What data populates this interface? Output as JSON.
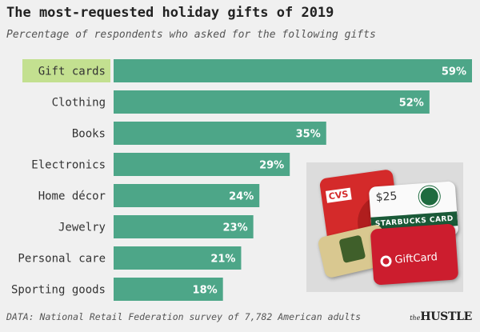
{
  "chart_data": {
    "type": "bar",
    "orientation": "horizontal",
    "title": "The most-requested holiday gifts of 2019",
    "subtitle": "Percentage of respondents who asked for the following gifts",
    "categories": [
      "Gift cards",
      "Clothing",
      "Books",
      "Electronics",
      "Home décor",
      "Jewelry",
      "Personal care",
      "Sporting goods"
    ],
    "values": [
      59,
      52,
      35,
      29,
      24,
      23,
      21,
      18
    ],
    "value_labels": [
      "59%",
      "52%",
      "35%",
      "29%",
      "24%",
      "23%",
      "21%",
      "18%"
    ],
    "highlighted_category": "Gift cards",
    "xlim": [
      0,
      59
    ],
    "grid": false,
    "legend": "none",
    "colors": {
      "bar": "#4da688",
      "highlight_label_bg": "#c3e090",
      "value_text": "#ffffff",
      "background": "#f0f0f0"
    }
  },
  "footer": {
    "source": "DATA: National Retail Federation survey of 7,782 American adults"
  },
  "logo": {
    "prefix": "the",
    "name": "HUSTLE"
  },
  "illustration": {
    "cvs_text": "CVS",
    "starbucks_amount": "$25",
    "starbucks_text": "STARBUCKS CARD",
    "target_text": "GiftCard"
  }
}
